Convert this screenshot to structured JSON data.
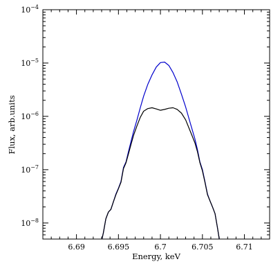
{
  "chart_data": {
    "type": "line",
    "title": "",
    "xlabel": "Energy, keV",
    "ylabel": "Flux, arb.units",
    "xlim": [
      6.686,
      6.713
    ],
    "ylim": [
      5e-09,
      0.0001
    ],
    "yscale": "log",
    "grid": false,
    "x_ticks": [
      {
        "value": 6.69,
        "label": "6.69"
      },
      {
        "value": 6.695,
        "label": "6.695"
      },
      {
        "value": 6.7,
        "label": "6.7"
      },
      {
        "value": 6.705,
        "label": "6.705"
      },
      {
        "value": 6.71,
        "label": "6.71"
      }
    ],
    "y_ticks": [
      {
        "value": 0.0001,
        "base": "10",
        "exp": "−4"
      },
      {
        "value": 1e-05,
        "base": "10",
        "exp": "−5"
      },
      {
        "value": 1e-06,
        "base": "10",
        "exp": "−6"
      },
      {
        "value": 1e-07,
        "base": "10",
        "exp": "−7"
      },
      {
        "value": 1e-08,
        "base": "10",
        "exp": "−8"
      }
    ],
    "series": [
      {
        "color": "#0000cc",
        "x": [
          6.6929,
          6.6932,
          6.6935,
          6.6938,
          6.6941,
          6.6944,
          6.6947,
          6.695,
          6.6953,
          6.6956,
          6.6959,
          6.6962,
          6.6965,
          6.6968,
          6.6972,
          6.6976,
          6.698,
          6.6985,
          6.699,
          6.6995,
          6.7,
          6.7005,
          6.701,
          6.7015,
          6.702,
          6.7025,
          6.703,
          6.7035,
          6.7038,
          6.7041,
          6.7044,
          6.7047,
          6.705,
          6.7053,
          6.7056,
          6.7059,
          6.7062,
          6.7065,
          6.7068,
          6.7071
        ],
        "y": [
          4e-09,
          6.5e-09,
          1.2e-08,
          1.6e-08,
          1.8e-08,
          2.5e-08,
          3.5e-08,
          4.5e-08,
          6e-08,
          1.1e-07,
          1.4e-07,
          2.2e-07,
          3.4e-07,
          5.2e-07,
          8.5e-07,
          1.45e-06,
          2.4e-06,
          4e-06,
          6e-06,
          8.4e-06,
          1.02e-05,
          1.04e-05,
          9e-06,
          6.6e-06,
          4.4e-06,
          2.6e-06,
          1.5e-06,
          8e-07,
          5.5e-07,
          3.8e-07,
          2.4e-07,
          1.4e-07,
          1e-07,
          6e-08,
          3.5e-08,
          2.6e-08,
          2e-08,
          1.5e-08,
          8e-09,
          4e-09
        ]
      },
      {
        "color": "#000000",
        "x": [
          6.6929,
          6.6932,
          6.6935,
          6.6938,
          6.6941,
          6.6944,
          6.6947,
          6.695,
          6.6953,
          6.6956,
          6.6959,
          6.6962,
          6.6965,
          6.6968,
          6.6972,
          6.6976,
          6.698,
          6.6985,
          6.699,
          6.6995,
          6.7,
          6.7005,
          6.701,
          6.7015,
          6.702,
          6.7025,
          6.703,
          6.7035,
          6.7038,
          6.7041,
          6.7044,
          6.7047,
          6.705,
          6.7053,
          6.7056,
          6.7059,
          6.7062,
          6.7065,
          6.7068,
          6.7071
        ],
        "y": [
          4e-09,
          6.5e-09,
          1.2e-08,
          1.6e-08,
          1.8e-08,
          2.5e-08,
          3.4e-08,
          4.4e-08,
          5.8e-08,
          1.05e-07,
          1.35e-07,
          2e-07,
          3e-07,
          4.4e-07,
          6.6e-07,
          9.6e-07,
          1.25e-06,
          1.4e-06,
          1.45e-06,
          1.38e-06,
          1.3e-06,
          1.35e-06,
          1.42e-06,
          1.45e-06,
          1.35e-06,
          1.15e-06,
          8.6e-07,
          5.5e-07,
          4.2e-07,
          3.2e-07,
          2.2e-07,
          1.35e-07,
          9.5e-08,
          5.8e-08,
          3.4e-08,
          2.6e-08,
          2e-08,
          1.5e-08,
          8e-09,
          4e-09
        ]
      }
    ]
  }
}
